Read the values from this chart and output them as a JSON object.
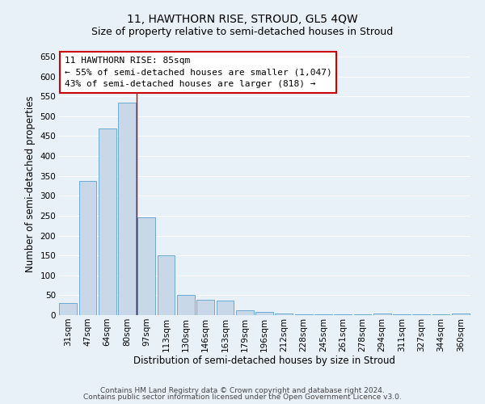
{
  "title": "11, HAWTHORN RISE, STROUD, GL5 4QW",
  "subtitle": "Size of property relative to semi-detached houses in Stroud",
  "xlabel": "Distribution of semi-detached houses by size in Stroud",
  "ylabel": "Number of semi-detached properties",
  "categories": [
    "31sqm",
    "47sqm",
    "64sqm",
    "80sqm",
    "97sqm",
    "113sqm",
    "130sqm",
    "146sqm",
    "163sqm",
    "179sqm",
    "196sqm",
    "212sqm",
    "228sqm",
    "245sqm",
    "261sqm",
    "278sqm",
    "294sqm",
    "311sqm",
    "327sqm",
    "344sqm",
    "360sqm"
  ],
  "values": [
    30,
    338,
    470,
    535,
    245,
    150,
    50,
    38,
    37,
    12,
    8,
    5,
    3,
    3,
    3,
    3,
    5,
    3,
    3,
    3,
    5
  ],
  "bar_color": "#c8d8e8",
  "bar_edge_color": "#6aaad4",
  "vline_color": "#cc0000",
  "vline_pos": 3.5,
  "annotation_title": "11 HAWTHORN RISE: 85sqm",
  "annotation_line1": "← 55% of semi-detached houses are smaller (1,047)",
  "annotation_line2": "43% of semi-detached houses are larger (818) →",
  "annotation_box_edge": "#cc0000",
  "ylim": [
    0,
    660
  ],
  "yticks": [
    0,
    50,
    100,
    150,
    200,
    250,
    300,
    350,
    400,
    450,
    500,
    550,
    600,
    650
  ],
  "footer1": "Contains HM Land Registry data © Crown copyright and database right 2024.",
  "footer2": "Contains public sector information licensed under the Open Government Licence v3.0.",
  "bg_color": "#e8f0f8",
  "plot_bg_color": "#e8f0f8",
  "grid_color": "#ffffff",
  "title_fontsize": 10,
  "subtitle_fontsize": 9,
  "xlabel_fontsize": 8.5,
  "ylabel_fontsize": 8.5,
  "tick_fontsize": 7.5,
  "annotation_fontsize": 8,
  "footer_fontsize": 6.5
}
